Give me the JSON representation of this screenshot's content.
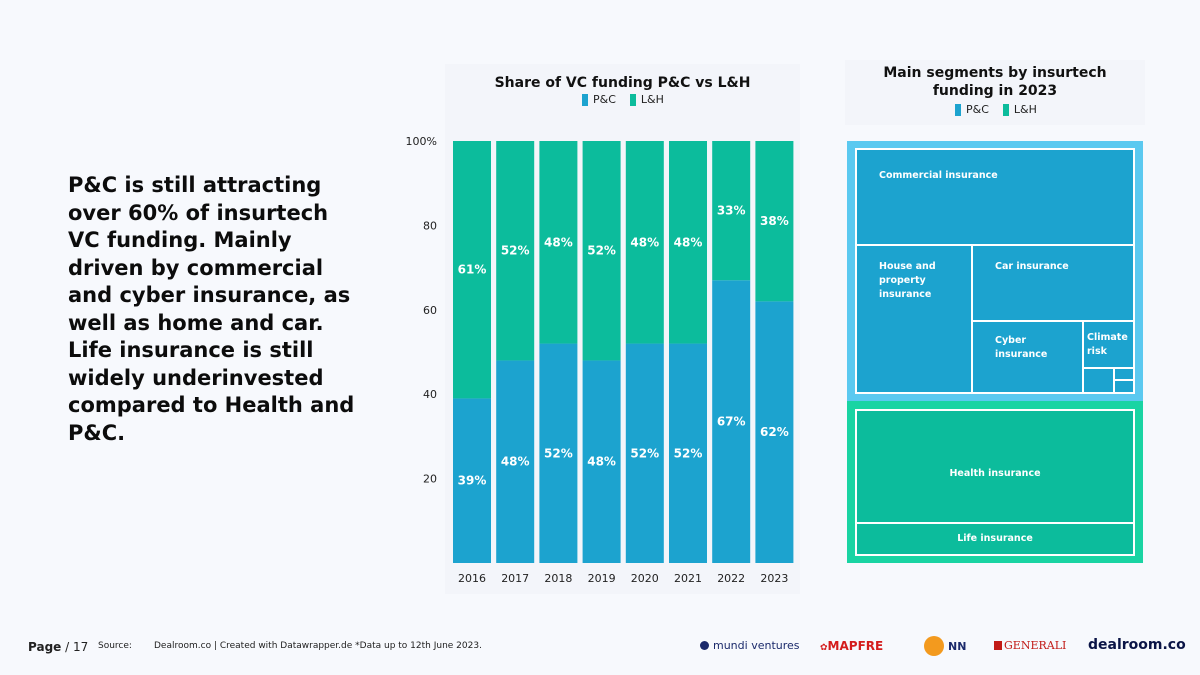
{
  "headline": "P&C is still attracting over 60% of insurtech VC funding. Mainly driven by commercial and cyber insurance, as well as home and car. Life insurance is still widely underinvested compared to Health and P&C.",
  "colors": {
    "pc": "#1ca3cf",
    "lh": "#0cbc9c",
    "treemap_pc_frame": "#5bc9f0",
    "treemap_lh_frame": "#19d4a3"
  },
  "chart_data": [
    {
      "type": "bar",
      "stacked": true,
      "title": "Share of VC funding P&C vs L&H",
      "categories": [
        "2016",
        "2017",
        "2018",
        "2019",
        "2020",
        "2021",
        "2022",
        "2023"
      ],
      "series": [
        {
          "name": "P&C",
          "values": [
            39,
            48,
            52,
            48,
            52,
            52,
            67,
            62
          ],
          "labels": [
            "39%",
            "48%",
            "52%",
            "48%",
            "52%",
            "52%",
            "67%",
            "62%"
          ]
        },
        {
          "name": "L&H",
          "values": [
            61,
            52,
            48,
            52,
            48,
            48,
            33,
            38
          ],
          "labels": [
            "61%",
            "52%",
            "48%",
            "52%",
            "48%",
            "48%",
            "33%",
            "38%"
          ]
        }
      ],
      "ylim": [
        0,
        100
      ],
      "yticks": [
        20,
        40,
        60,
        80,
        100
      ],
      "ytick_labels": [
        "20",
        "40",
        "60",
        "80",
        "100%"
      ],
      "legend": "top"
    },
    {
      "type": "treemap",
      "title": "Main segments by insurtech funding in 2023",
      "legend": [
        "P&C",
        "L&H"
      ],
      "groups": [
        {
          "name": "P&C",
          "segments": [
            "Commercial insurance",
            "House and property insurance",
            "Car insurance",
            "Cyber insurance",
            "Climate risk"
          ]
        },
        {
          "name": "L&H",
          "segments": [
            "Health insurance",
            "Life insurance"
          ]
        }
      ]
    }
  ],
  "footer": {
    "page_label": "Page",
    "page_number": "/ 17",
    "source_label": "Source:",
    "source_text": "Dealroom.co | Created with Datawrapper.de  *Data up to 12th June 2023."
  },
  "logos": {
    "mundi": "mundi ventures",
    "mapfre": "MAPFRE",
    "nn": "NN",
    "generali": "GENERALI",
    "dealroom": "dealroom.co"
  }
}
